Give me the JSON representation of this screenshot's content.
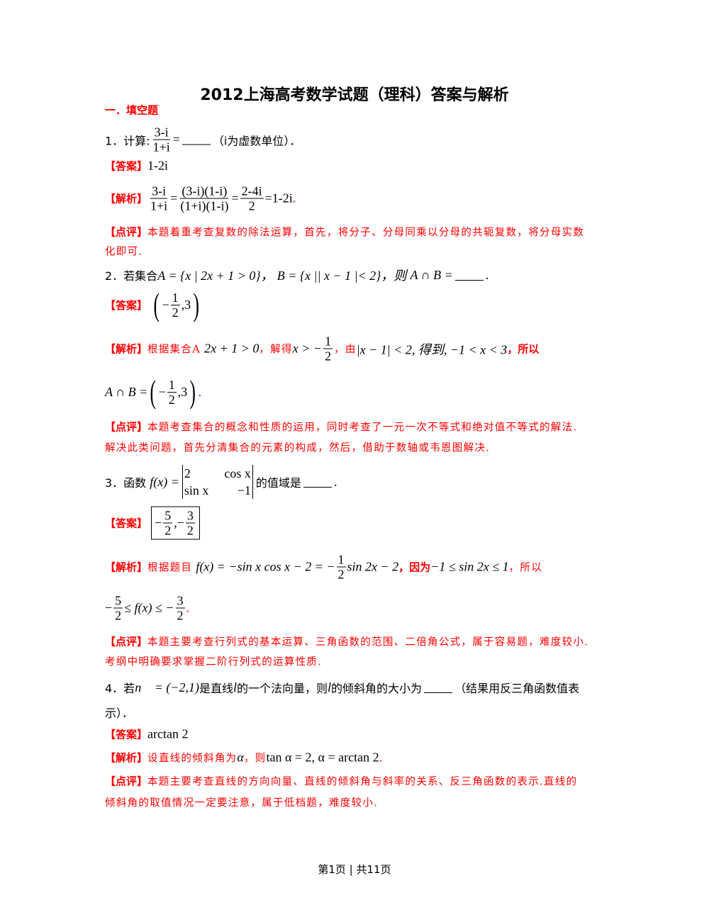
{
  "title": "2012上海高考数学试题（理科）答案与解析",
  "section": "一．填空题",
  "tags": {
    "answer": "【答案】",
    "analysis": "【解析】",
    "comment": "【点评】"
  },
  "q1": {
    "num": "1．计算:",
    "frac": [
      "3-i",
      "1+i"
    ],
    "eq": "=",
    "tail": "（i为虚数单位）．",
    "answer": "1-2i",
    "analysis": {
      "f1": [
        "3-i",
        "1+i"
      ],
      "f2": [
        "(3-i)(1-i)",
        "(1+i)(1-i)"
      ],
      "f3": [
        "2-4i",
        "2"
      ],
      "eq": "=",
      "result": "=1-2i",
      "dot": "."
    },
    "comment": [
      "本题着重考查复数的除法运算，首先，将分子、分母同乘以分母的共轭复数，将分母实数",
      "化即可."
    ]
  },
  "q2": {
    "num": "2．若集合",
    "a": "A = {x | 2x + 1 > 0}，",
    "b": "B = {x || x − 1 |< 2}，则",
    "c": "A ∩ B =",
    "dot": ".",
    "answer": {
      "minus": "−",
      "frac": [
        "1",
        "2"
      ],
      "rest": ",3"
    },
    "analysis": {
      "t1": "根据集合A",
      "m1": "2x + 1 > 0",
      "t2": "，解得",
      "m2": "x > −",
      "frac": [
        "1",
        "2"
      ],
      "t3": "，由",
      "m3": "|x − 1| < 2, 得到, −1 < x < 3",
      "t4": "，所以",
      "line2": "A ∩ B =",
      "minus": "−",
      "frac2": [
        "1",
        "2"
      ],
      "rest": ",3",
      "dot": "."
    },
    "comment": [
      "本题考查集合的概念和性质的运用，同时考查了一元一次不等式和绝对值不等式的解法.",
      "解决此类问题，首先分清集合的元素的构成，然后，借助于数轴或韦恩图解决."
    ]
  },
  "q3": {
    "num": "3．函数",
    "f": "f(x) =",
    "det": [
      "2",
      "cos x",
      "sin x",
      "−1"
    ],
    "tail": "的值域是",
    "dot": ".",
    "answer": {
      "m1": "−",
      "f1": [
        "5",
        "2"
      ],
      "sep": ",−",
      "f2": [
        "3",
        "2"
      ]
    },
    "analysis": {
      "t1": "根据题目",
      "m1": "f(x) = −sin x cos x − 2 = −",
      "frac": [
        "1",
        "2"
      ],
      "m2": "sin 2x − 2",
      "t2": "，因为",
      "m3": "−1 ≤ sin 2x ≤ 1",
      "t3": "，所以",
      "l2a": "−",
      "f1": [
        "5",
        "2"
      ],
      "l2b": "≤ f(x) ≤ −",
      "f2": [
        "3",
        "2"
      ],
      "dot": "."
    },
    "comment": [
      "本题主要考查行列式的基本运算、三角函数的范围、二倍角公式，属于容易题，难度较小.",
      "考纲中明确要求掌握二阶行列式的运算性质."
    ]
  },
  "q4": {
    "num": "4．若",
    "vec": "n⃗ = (−2,1)",
    "t1": "是直线",
    "l": "l",
    "t2": "的一个法向量，则",
    "t3": "的倾斜角的大小为",
    "t4": "（结果用反三角函数值表",
    "line2": "示）．",
    "answer": "arctan 2",
    "analysis": {
      "t1": "设直线的倾斜角为",
      "a": "α",
      "t2": "，则",
      "m": "tan α = 2, α = arctan 2",
      "dot": "."
    },
    "comment": [
      "本题主要考查直线的方向向量、直线的倾斜角与斜率的关系、反三角函数的表示.直线的",
      "倾斜角的取值情况一定要注意，属于低档题，难度较小."
    ]
  },
  "footer": "第1页 | 共11页",
  "colors": {
    "accent": "#ff0000",
    "text": "#000000"
  }
}
